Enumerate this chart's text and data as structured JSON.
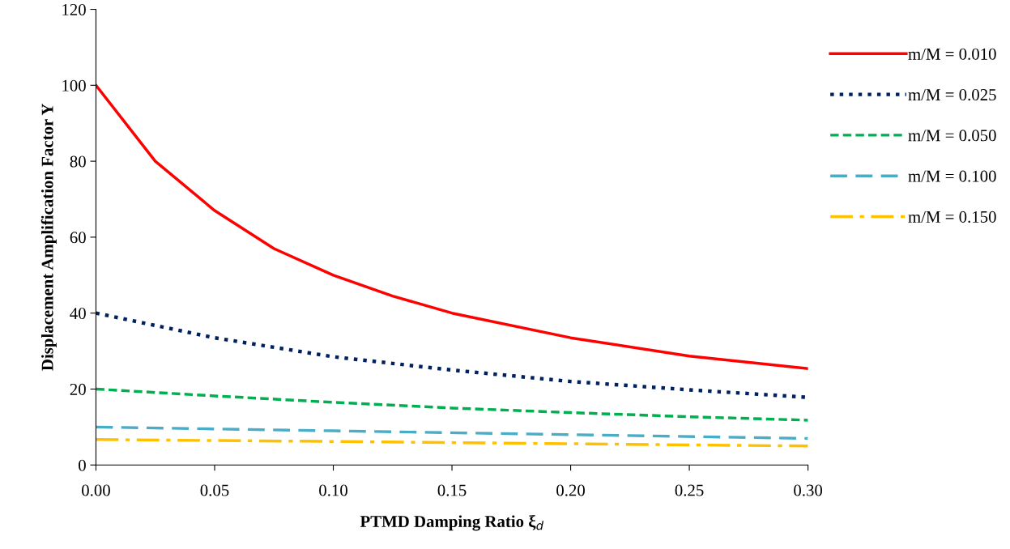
{
  "chart_data": {
    "type": "line",
    "xlabel": "PTMD Damping Ratio ξ$_{d}$",
    "ylabel": "Displacement Amplification Factor Y",
    "xlim": [
      0,
      0.3
    ],
    "xticks": [
      {
        "value": 0,
        "label": "0.00"
      },
      {
        "value": 0.05,
        "label": "0.05"
      },
      {
        "value": 0.1,
        "label": "0.10"
      },
      {
        "value": 0.15,
        "label": "0.15"
      },
      {
        "value": 0.2,
        "label": "0.20"
      },
      {
        "value": 0.25,
        "label": "0.25"
      },
      {
        "value": 0.3,
        "label": "0.30"
      }
    ],
    "ylim": [
      0,
      120
    ],
    "yticks": [
      0,
      20,
      40,
      60,
      80,
      100,
      120
    ],
    "grid": false,
    "legend": "right",
    "marker": "none",
    "series": [
      {
        "name": "m/M = 0.010",
        "color": "#ff0000",
        "line_style": "solid",
        "x": [
          0,
          0.025,
          0.05,
          0.075,
          0.1,
          0.125,
          0.15,
          0.2,
          0.25,
          0.3
        ],
        "values": [
          100,
          80,
          67,
          57,
          50,
          44.5,
          40,
          33.5,
          28.7,
          25.4
        ]
      },
      {
        "name": "m/M = 0.025",
        "color": "#002060",
        "line_style": "dotted",
        "x": [
          0,
          0.05,
          0.1,
          0.15,
          0.2,
          0.25,
          0.3
        ],
        "values": [
          40,
          33.5,
          28.5,
          25,
          22,
          19.8,
          17.8
        ]
      },
      {
        "name": "m/M = 0.050",
        "color": "#00b050",
        "line_style": "dashed",
        "x": [
          0,
          0.05,
          0.1,
          0.15,
          0.2,
          0.25,
          0.3
        ],
        "values": [
          20,
          18.2,
          16.5,
          15,
          13.8,
          12.7,
          11.8
        ]
      },
      {
        "name": "m/M = 0.100",
        "color": "#4bacc6",
        "line_style": "longdash",
        "x": [
          0,
          0.1,
          0.2,
          0.3
        ],
        "values": [
          10,
          9,
          8,
          7
        ]
      },
      {
        "name": "m/M = 0.150",
        "color": "#ffc000",
        "line_style": "dashdot",
        "x": [
          0,
          0.1,
          0.2,
          0.3
        ],
        "values": [
          6.7,
          6.2,
          5.6,
          5.0
        ]
      }
    ]
  }
}
